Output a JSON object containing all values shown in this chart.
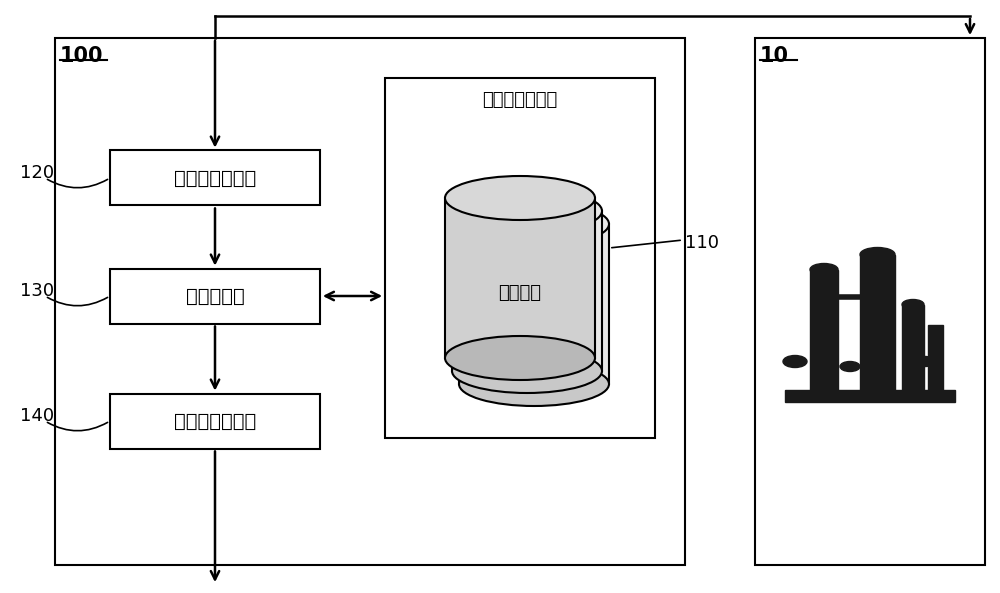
{
  "bg_color": "#ffffff",
  "line_color": "#000000",
  "box_fill": "#ffffff",
  "box_edge": "#000000",
  "figsize": [
    10.0,
    5.93
  ],
  "dpi": 100,
  "label_100": "100",
  "label_10": "10",
  "label_120": "120",
  "label_130": "130",
  "label_140": "140",
  "label_110": "110",
  "box1_text": "性状数据取得部",
  "box2_text": "模型选择部",
  "box3_text": "对象模型输出部",
  "db_box_title": "评价模型存储部",
  "db_label": "评价模型",
  "font_size_box": 14,
  "font_size_label": 13
}
